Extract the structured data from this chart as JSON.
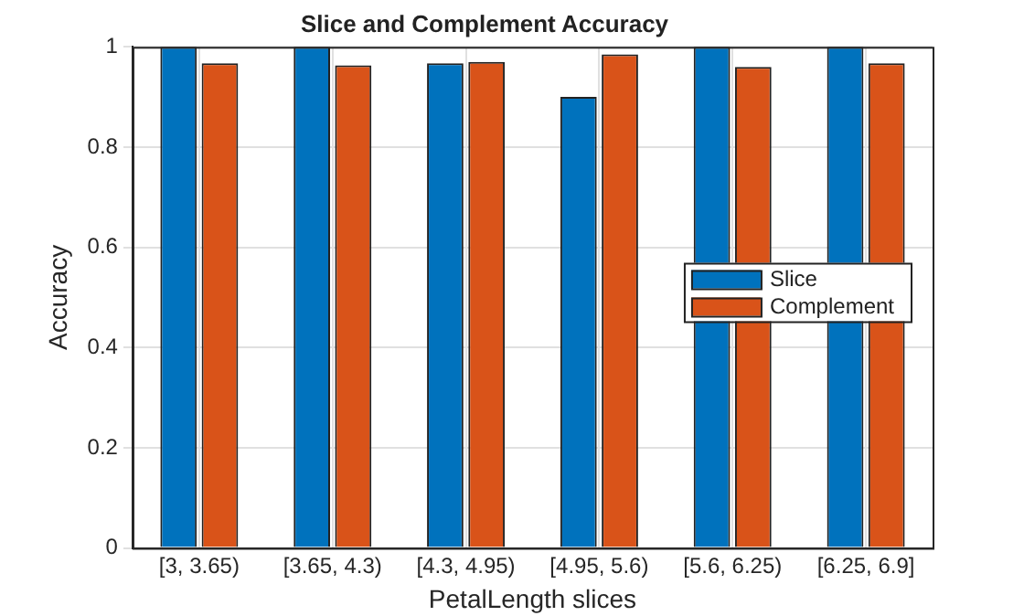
{
  "chart_data": {
    "type": "bar",
    "title": "Slice and Complement Accuracy",
    "xlabel": "PetalLength slices",
    "ylabel": "Accuracy",
    "categories": [
      "[3, 3.65)",
      "[3.65, 4.3)",
      "[4.3, 4.95)",
      "[4.95, 5.6)",
      "[5.6, 6.25)",
      "[6.25, 6.9]"
    ],
    "series": [
      {
        "name": "Slice",
        "color": "#0072bd",
        "values": [
          1,
          1,
          0.967,
          0.9,
          1,
          1
        ]
      },
      {
        "name": "Complement",
        "color": "#d95319",
        "values": [
          0.967,
          0.963,
          0.97,
          0.985,
          0.96,
          0.967
        ]
      }
    ],
    "ylim": [
      0,
      1
    ],
    "yticks": [
      0,
      0.2,
      0.4,
      0.6,
      0.8,
      1
    ],
    "grid": true,
    "legend": "right"
  }
}
